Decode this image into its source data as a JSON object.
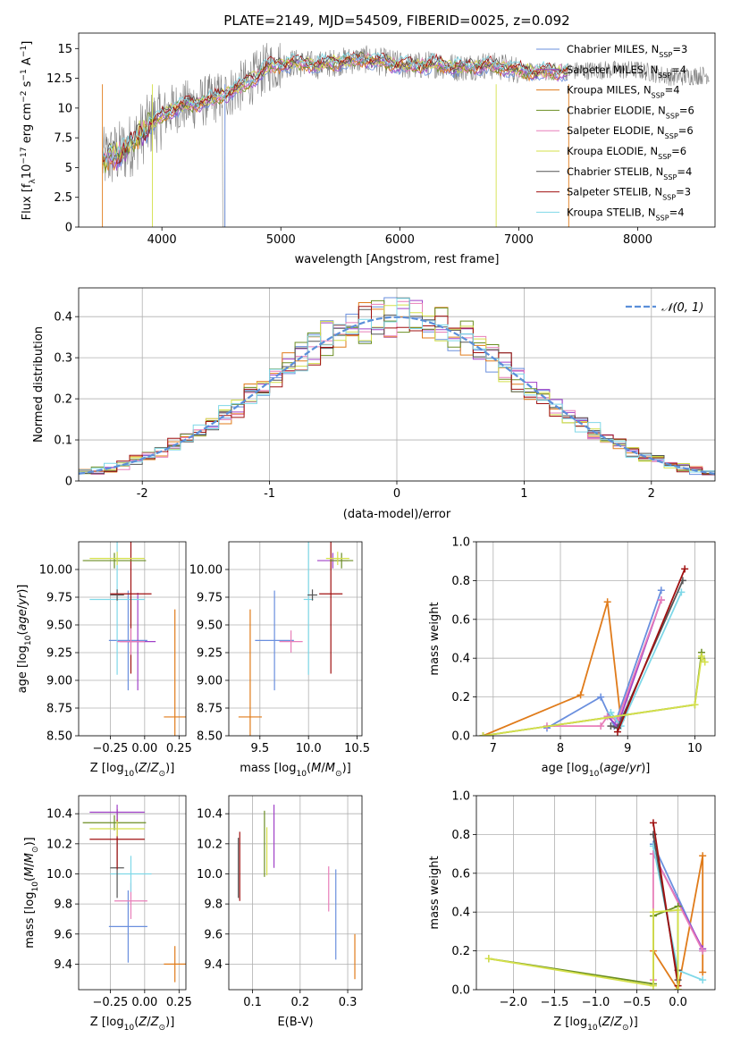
{
  "colors": {
    "chabrier_miles": "#6a8fde",
    "salpeter_miles": "#a040c8",
    "kroupa_miles": "#e07b1a",
    "chabrier_elodie": "#6b8e23",
    "salpeter_elodie": "#e87fb9",
    "kroupa_elodie": "#d4e04a",
    "chabrier_stelib": "#555555",
    "salpeter_stelib": "#a01010",
    "kroupa_stelib": "#7fd8e8",
    "data": "#808080",
    "normal": "#5b8fd9"
  },
  "chart_data": [
    {
      "type": "line",
      "title": "PLATE=2149, MJD=54509, FIBERID=0025, z=0.092",
      "xlabel": "wavelength [Angstrom, rest frame]",
      "ylabel": "Flux [f$_\\lambda$10$^{-17}$ erg cm$^{-2}$ s$^{-1}$ A$^{-1}$]",
      "ylabel_parts": [
        "Flux [f",
        "λ",
        "10",
        "−17",
        " erg cm",
        "−2",
        " s",
        "−1",
        " A",
        "−1",
        "]"
      ],
      "xlim": [
        3300,
        8650
      ],
      "ylim": [
        0,
        16.3
      ],
      "xticks": [
        4000,
        5000,
        6000,
        7000,
        8000
      ],
      "yticks": [
        0.0,
        2.5,
        5.0,
        7.5,
        10.0,
        12.5,
        15.0
      ],
      "grid": false,
      "legend_placement": "top-right",
      "legend": [
        {
          "name": "Chabrier MILES, N",
          "sub": "SSP",
          "tail": "=3",
          "color_key": "chabrier_miles"
        },
        {
          "name": "Salpeter MILES, N",
          "sub": "SSP",
          "tail": "=4",
          "color_key": "salpeter_miles"
        },
        {
          "name": "Kroupa MILES, N",
          "sub": "SSP",
          "tail": "=4",
          "color_key": "kroupa_miles"
        },
        {
          "name": "Chabrier ELODIE, N",
          "sub": "SSP",
          "tail": "=6",
          "color_key": "chabrier_elodie"
        },
        {
          "name": "Salpeter ELODIE, N",
          "sub": "SSP",
          "tail": "=6",
          "color_key": "salpeter_elodie"
        },
        {
          "name": "Kroupa ELODIE, N",
          "sub": "SSP",
          "tail": "=6",
          "color_key": "kroupa_elodie"
        },
        {
          "name": "Chabrier STELIB, N",
          "sub": "SSP",
          "tail": "=4",
          "color_key": "chabrier_stelib"
        },
        {
          "name": "Salpeter STELIB, N",
          "sub": "SSP",
          "tail": "=3",
          "color_key": "salpeter_stelib"
        },
        {
          "name": "Kroupa STELIB, N",
          "sub": "SSP",
          "tail": "=4",
          "color_key": "kroupa_stelib"
        }
      ],
      "continuum": [
        [
          3500,
          5.6
        ],
        [
          3700,
          6.5
        ],
        [
          3900,
          8.6
        ],
        [
          4100,
          10.0
        ],
        [
          4300,
          10.4
        ],
        [
          4500,
          11.0
        ],
        [
          4700,
          12.0
        ],
        [
          4900,
          13.5
        ],
        [
          5100,
          13.8
        ],
        [
          5300,
          13.6
        ],
        [
          5500,
          13.9
        ],
        [
          5700,
          14.1
        ],
        [
          5900,
          13.8
        ],
        [
          6100,
          13.5
        ],
        [
          6300,
          13.7
        ],
        [
          6500,
          13.4
        ],
        [
          6700,
          13.6
        ],
        [
          6900,
          13.4
        ],
        [
          7100,
          13.0
        ],
        [
          7400,
          13.1
        ],
        [
          7700,
          13.2
        ],
        [
          8000,
          13.2
        ],
        [
          8300,
          12.6
        ],
        [
          8600,
          12.8
        ]
      ]
    },
    {
      "type": "line",
      "xlabel": "(data-model)/error",
      "ylabel": "Normed distribution",
      "xlim": [
        -2.5,
        2.5
      ],
      "ylim": [
        0,
        0.47
      ],
      "xticks": [
        -2,
        -1,
        0,
        1,
        2
      ],
      "yticks": [
        0.0,
        0.1,
        0.2,
        0.3,
        0.4
      ],
      "grid": true,
      "legend_placement": "top-right",
      "legend_label": "𝒩(0, 1)",
      "bin_width": 0.1
    },
    {
      "type": "scatter",
      "xlabel": "Z [log$_{10}$(Z/Z$_\\odot$)]",
      "ylabel": "age  [log$_{10}$(age/yr)]",
      "xlim": [
        -0.48,
        0.3
      ],
      "ylim": [
        8.5,
        10.25
      ],
      "xticks": [
        -0.25,
        0.0,
        0.25
      ],
      "xtick_labels": [
        "−0.25",
        "0.00",
        "0.25"
      ],
      "yticks": [
        8.5,
        8.75,
        9.0,
        9.25,
        9.5,
        9.75,
        10.0
      ],
      "yticks_labels": [
        "8.50",
        "8.75",
        "9.00",
        "9.25",
        "9.50",
        "9.75",
        "10.00"
      ],
      "grid": true,
      "points": [
        {
          "key": "kroupa_miles",
          "x": 0.22,
          "y": 8.67,
          "xerr": 0.08,
          "yerr": [
            0.6,
            0.97
          ]
        },
        {
          "key": "chabrier_miles",
          "x": -0.12,
          "y": 9.36,
          "xerr": 0.14,
          "yerr": 0.45
        },
        {
          "key": "salpeter_miles",
          "x": -0.05,
          "y": 9.35,
          "xerr": 0.13,
          "yerr": 0.44
        },
        {
          "key": "kroupa_stelib",
          "x": -0.2,
          "y": 9.73,
          "xerr": 0.2,
          "yerr": 0.68
        },
        {
          "key": "chabrier_stelib",
          "x": -0.2,
          "y": 9.77,
          "xerr": 0.05,
          "yerr": 0.05
        },
        {
          "key": "salpeter_stelib",
          "x": -0.1,
          "y": 9.78,
          "xerr": 0.15,
          "yerr": 0.72
        },
        {
          "key": "salpeter_elodie",
          "x": -0.1,
          "y": 9.35,
          "xerr": 0.1,
          "yerr": 0.12
        },
        {
          "key": "chabrier_elodie",
          "x": -0.22,
          "y": 10.08,
          "xerr": 0.23,
          "yerr": 0.07
        },
        {
          "key": "kroupa_elodie",
          "x": -0.2,
          "y": 10.1,
          "xerr": 0.2,
          "yerr": 0.06
        }
      ]
    },
    {
      "type": "scatter",
      "xlabel": "mass [log$_{10}$(M/M$_\\odot$)]",
      "ylabel": "",
      "xlim": [
        9.18,
        10.55
      ],
      "ylim": [
        8.5,
        10.25
      ],
      "xticks": [
        9.5,
        10.0,
        10.5
      ],
      "xtick_labels": [
        "9.5",
        "10.0",
        "10.5"
      ],
      "yticks": [
        8.5,
        8.75,
        9.0,
        9.25,
        9.5,
        9.75,
        10.0
      ],
      "yticks_labels": [
        "8.50",
        "8.75",
        "9.00",
        "9.25",
        "9.50",
        "9.75",
        "10.00"
      ],
      "grid": true,
      "points": [
        {
          "key": "kroupa_miles",
          "x": 9.4,
          "y": 8.67,
          "xerr": 0.12,
          "yerr": [
            0.6,
            0.97
          ]
        },
        {
          "key": "chabrier_miles",
          "x": 9.65,
          "y": 9.36,
          "xerr": 0.2,
          "yerr": 0.45
        },
        {
          "key": "salpeter_miles",
          "x": 10.25,
          "y": 10.08,
          "xerr": 0.16,
          "yerr": 0.07
        },
        {
          "key": "salpeter_elodie",
          "x": 9.82,
          "y": 9.35,
          "xerr": 0.12,
          "yerr": 0.1
        },
        {
          "key": "kroupa_stelib",
          "x": 10.0,
          "y": 9.73,
          "xerr": 0.05,
          "yerr": 0.68
        },
        {
          "key": "chabrier_stelib",
          "x": 10.04,
          "y": 9.77,
          "xerr": 0.05,
          "yerr": 0.05
        },
        {
          "key": "salpeter_stelib",
          "x": 10.23,
          "y": 9.78,
          "xerr": 0.12,
          "yerr": 0.72
        },
        {
          "key": "chabrier_elodie",
          "x": 10.34,
          "y": 10.08,
          "xerr": 0.12,
          "yerr": 0.07
        },
        {
          "key": "kroupa_elodie",
          "x": 10.3,
          "y": 10.1,
          "xerr": 0.12,
          "yerr": 0.06
        }
      ]
    },
    {
      "type": "line",
      "xlabel": "age  [log$_{10}$(age/yr)]",
      "ylabel": "mass weight",
      "xlim": [
        6.75,
        10.3
      ],
      "ylim": [
        0,
        1.0
      ],
      "xticks": [
        7,
        8,
        9,
        10
      ],
      "xtick_labels": [
        "7",
        "8",
        "9",
        "10"
      ],
      "yticks": [
        0.0,
        0.2,
        0.4,
        0.6,
        0.8,
        1.0
      ],
      "yticks_labels": [
        "0.0",
        "0.2",
        "0.4",
        "0.6",
        "0.8",
        "1.0"
      ],
      "grid": true,
      "series": [
        {
          "key": "kroupa_miles",
          "x": [
            6.85,
            8.3,
            8.7,
            8.9
          ],
          "y": [
            0.0,
            0.21,
            0.69,
            0.08
          ]
        },
        {
          "key": "chabrier_miles",
          "x": [
            7.8,
            8.6,
            8.8,
            9.5
          ],
          "y": [
            0.04,
            0.2,
            0.05,
            0.75
          ]
        },
        {
          "key": "salpeter_miles",
          "x": [
            8.7,
            8.85,
            9.5
          ],
          "y": [
            0.1,
            0.05,
            0.7
          ]
        },
        {
          "key": "salpeter_elodie",
          "x": [
            7.8,
            8.6,
            8.7,
            8.85,
            9.5
          ],
          "y": [
            0.05,
            0.05,
            0.1,
            0.08,
            0.7
          ]
        },
        {
          "key": "kroupa_stelib",
          "x": [
            8.75,
            8.9,
            9.8
          ],
          "y": [
            0.12,
            0.05,
            0.74
          ]
        },
        {
          "key": "chabrier_stelib",
          "x": [
            8.75,
            8.85,
            9.82
          ],
          "y": [
            0.05,
            0.04,
            0.8
          ]
        },
        {
          "key": "salpeter_stelib",
          "x": [
            8.85,
            9.85
          ],
          "y": [
            0.02,
            0.86
          ]
        },
        {
          "key": "chabrier_elodie",
          "x": [
            6.85,
            10.0,
            10.1,
            10.1
          ],
          "y": [
            0.0,
            0.16,
            0.43,
            0.4
          ]
        },
        {
          "key": "kroupa_elodie",
          "x": [
            6.85,
            10.0,
            10.1,
            10.15
          ],
          "y": [
            0.0,
            0.16,
            0.41,
            0.38
          ]
        }
      ]
    },
    {
      "type": "scatter",
      "xlabel": "Z [log$_{10}$(Z/Z$_\\odot$)]",
      "ylabel": "mass [log$_{10}$(M/M$_\\odot$)]",
      "xlim": [
        -0.48,
        0.3
      ],
      "ylim": [
        9.23,
        10.52
      ],
      "xticks": [
        -0.25,
        0.0,
        0.25
      ],
      "xtick_labels": [
        "−0.25",
        "0.00",
        "0.25"
      ],
      "yticks": [
        9.4,
        9.6,
        9.8,
        10.0,
        10.2,
        10.4
      ],
      "yticks_labels": [
        "9.4",
        "9.6",
        "9.8",
        "10.0",
        "10.2",
        "10.4"
      ],
      "grid": true,
      "points": [
        {
          "key": "kroupa_miles",
          "x": 0.22,
          "y": 9.4,
          "xerr": 0.08,
          "yerr": 0.12
        },
        {
          "key": "chabrier_miles",
          "x": -0.12,
          "y": 9.65,
          "xerr": 0.14,
          "yerr": 0.24
        },
        {
          "key": "salpeter_elodie",
          "x": -0.1,
          "y": 9.82,
          "xerr": 0.12,
          "yerr": 0.12
        },
        {
          "key": "kroupa_stelib",
          "x": -0.1,
          "y": 10.0,
          "xerr": 0.15,
          "yerr": 0.12
        },
        {
          "key": "chabrier_stelib",
          "x": -0.2,
          "y": 10.04,
          "xerr": 0.05,
          "yerr": 0.2
        },
        {
          "key": "salpeter_stelib",
          "x": -0.2,
          "y": 10.23,
          "xerr": 0.2,
          "yerr": 0.2
        },
        {
          "key": "chabrier_elodie",
          "x": -0.22,
          "y": 10.34,
          "xerr": 0.23,
          "yerr": 0.05
        },
        {
          "key": "kroupa_elodie",
          "x": -0.2,
          "y": 10.3,
          "xerr": 0.2,
          "yerr": 0.05
        },
        {
          "key": "salpeter_miles",
          "x": -0.2,
          "y": 10.41,
          "xerr": 0.2,
          "yerr": 0.05
        }
      ]
    },
    {
      "type": "scatter",
      "xlabel": "E(B-V)",
      "ylabel": "",
      "xlim": [
        0.05,
        0.33
      ],
      "ylim": [
        9.23,
        10.52
      ],
      "xticks": [
        0.1,
        0.2,
        0.3
      ],
      "xtick_labels": [
        "0.1",
        "0.2",
        "0.3"
      ],
      "yticks": [
        9.4,
        9.6,
        9.8,
        10.0,
        10.2,
        10.4
      ],
      "yticks_labels": [
        "9.4",
        "9.6",
        "9.8",
        "10.0",
        "10.2",
        "10.4"
      ],
      "grid": true,
      "points": [
        {
          "key": "chabrier_stelib",
          "x": 0.07,
          "y": 10.04,
          "xerr": 0,
          "yerr": 0.2
        },
        {
          "key": "salpeter_stelib",
          "x": 0.073,
          "y": 10.05,
          "xerr": 0,
          "yerr": 0.23
        },
        {
          "key": "chabrier_elodie",
          "x": 0.125,
          "y": 10.2,
          "xerr": 0,
          "yerr": 0.22
        },
        {
          "key": "kroupa_elodie",
          "x": 0.13,
          "y": 10.15,
          "xerr": 0,
          "yerr": 0.16
        },
        {
          "key": "salpeter_miles",
          "x": 0.145,
          "y": 10.25,
          "xerr": 0,
          "yerr": 0.21
        },
        {
          "key": "salpeter_elodie",
          "x": 0.26,
          "y": 9.9,
          "xerr": 0,
          "yerr": 0.15
        },
        {
          "key": "chabrier_miles",
          "x": 0.275,
          "y": 9.73,
          "xerr": 0,
          "yerr": 0.3
        },
        {
          "key": "kroupa_miles",
          "x": 0.315,
          "y": 9.45,
          "xerr": 0,
          "yerr": 0.15
        }
      ]
    },
    {
      "type": "line",
      "xlabel": "Z [log$_{10}$(Z/Z$_\\odot$)]",
      "ylabel": "mass weight",
      "xlim": [
        -2.45,
        0.45
      ],
      "ylim": [
        0,
        1.0
      ],
      "xticks": [
        -2.0,
        -1.5,
        -1.0,
        -0.5,
        0.0
      ],
      "xtick_labels": [
        "−2.0",
        "−1.5",
        "−1.0",
        "−0.5",
        "0.0"
      ],
      "yticks": [
        0.0,
        0.2,
        0.4,
        0.6,
        0.8,
        1.0
      ],
      "yticks_labels": [
        "0.0",
        "0.2",
        "0.4",
        "0.6",
        "0.8",
        "1.0"
      ],
      "grid": true,
      "series": [
        {
          "key": "kroupa_miles",
          "x": [
            -0.3,
            0.0,
            0.3,
            0.3
          ],
          "y": [
            0.2,
            0.0,
            0.69,
            0.09
          ]
        },
        {
          "key": "chabrier_miles",
          "x": [
            -0.3,
            0.3
          ],
          "y": [
            0.75,
            0.2
          ]
        },
        {
          "key": "salpeter_miles",
          "x": [
            -0.3,
            0.3
          ],
          "y": [
            0.7,
            0.21
          ]
        },
        {
          "key": "salpeter_elodie",
          "x": [
            -0.3,
            -0.3,
            0.3
          ],
          "y": [
            0.05,
            0.7,
            0.2
          ]
        },
        {
          "key": "kroupa_stelib",
          "x": [
            -0.3,
            0.0,
            0.3
          ],
          "y": [
            0.74,
            0.1,
            0.05
          ]
        },
        {
          "key": "chabrier_stelib",
          "x": [
            -0.3,
            0.0,
            0.0
          ],
          "y": [
            0.8,
            0.05,
            0.1
          ]
        },
        {
          "key": "salpeter_stelib",
          "x": [
            -0.3,
            0.0
          ],
          "y": [
            0.86,
            0.02
          ]
        },
        {
          "key": "chabrier_elodie",
          "x": [
            -2.3,
            -0.3,
            -0.3,
            0.0,
            0.0
          ],
          "y": [
            0.16,
            0.03,
            0.38,
            0.43,
            0.0
          ]
        },
        {
          "key": "kroupa_elodie",
          "x": [
            -2.3,
            -0.3,
            -0.3,
            0.0,
            0.0
          ],
          "y": [
            0.16,
            0.02,
            0.4,
            0.41,
            0.0
          ]
        }
      ]
    }
  ]
}
